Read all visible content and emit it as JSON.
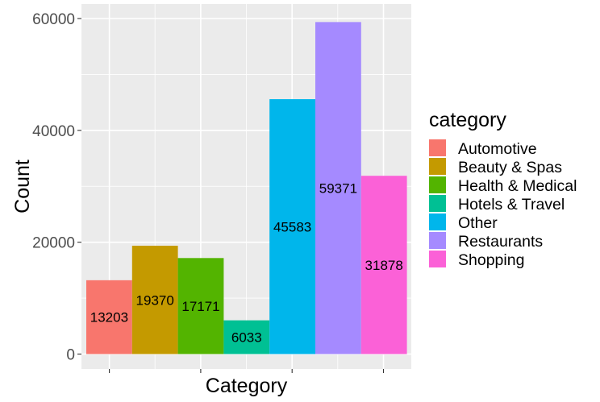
{
  "chart_data": {
    "type": "bar",
    "title": "",
    "xlabel": "Category",
    "ylabel": "Count",
    "ylim": [
      0,
      63000
    ],
    "yticks": [
      0,
      20000,
      40000,
      60000
    ],
    "grid": true,
    "legend_position": "right",
    "legend_title": "category",
    "categories": [
      "Automotive",
      "Beauty & Spas",
      "Health & Medical",
      "Hotels & Travel",
      "Other",
      "Restaurants",
      "Shopping"
    ],
    "values": [
      13203,
      19370,
      17171,
      6033,
      45583,
      59371,
      31878
    ],
    "colors": [
      "#F8766D",
      "#C49A00",
      "#53B400",
      "#00C094",
      "#00B6EB",
      "#A58AFF",
      "#FB61D7"
    ]
  }
}
